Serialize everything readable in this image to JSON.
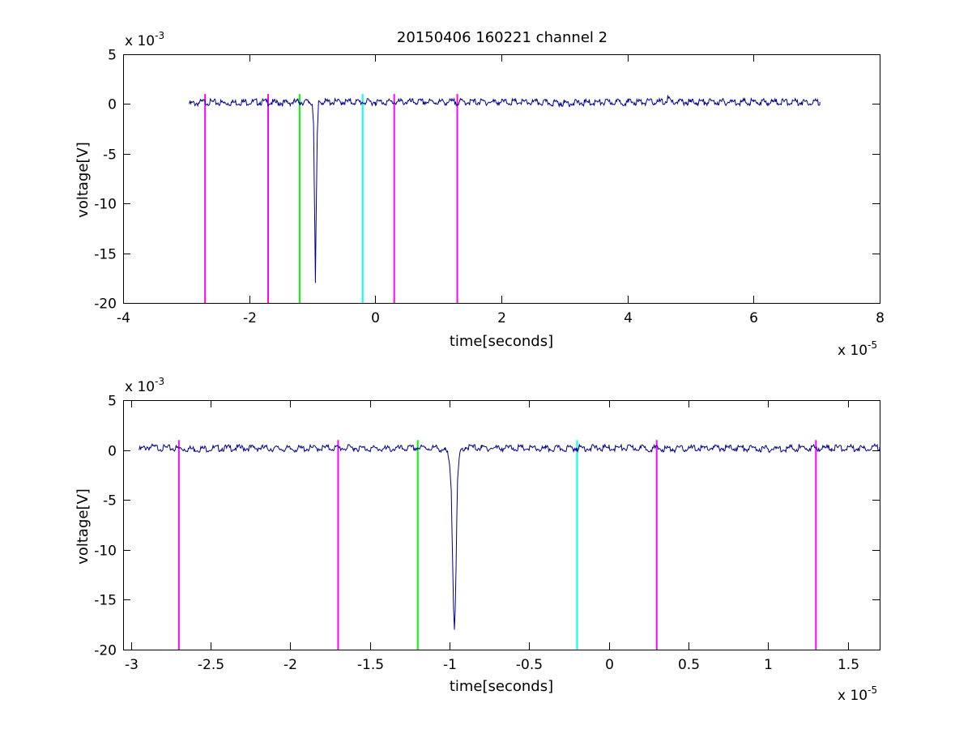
{
  "chart_data": [
    {
      "type": "line",
      "title": "20150406 160221 channel 2",
      "xlabel": "time[seconds]",
      "ylabel": "voltage[V]",
      "x_multiplier_label": "x 10",
      "x_multiplier_exp": "-5",
      "y_multiplier_label": "x 10",
      "y_multiplier_exp": "-3",
      "xlim": [
        -4,
        8
      ],
      "ylim": [
        -20,
        5
      ],
      "xticks": [
        -4,
        -2,
        0,
        2,
        4,
        6,
        8
      ],
      "xtick_labels": [
        "-4",
        "-2",
        "0",
        "2",
        "4",
        "6",
        "8"
      ],
      "yticks": [
        5,
        0,
        -5,
        -10,
        -15,
        -20
      ],
      "ytick_labels": [
        "5",
        "0",
        "-5",
        "-10",
        "-15",
        "-20"
      ],
      "grid": false,
      "series": [
        {
          "color": "#00008B",
          "x": [
            -2.95,
            -2.7,
            -2.4,
            -2.1,
            -1.8,
            -1.5,
            -1.2,
            -1.05,
            -1.0,
            -0.98,
            -0.97,
            -0.96,
            -0.95,
            -0.94,
            -0.92,
            -0.9,
            -0.8,
            -0.5,
            0,
            1,
            2,
            3,
            4,
            4.6,
            4.65,
            4.7,
            5,
            6,
            7.05
          ],
          "y": [
            0.0,
            0.2,
            0.1,
            0.2,
            0.2,
            0.1,
            0.2,
            0.2,
            0.0,
            -2.0,
            -7.0,
            -12.0,
            -18.0,
            -12.0,
            -3.0,
            0.3,
            0.2,
            0.2,
            0.2,
            0.2,
            0.2,
            0.1,
            0.2,
            0.2,
            0.6,
            0.2,
            0.2,
            0.2,
            0.2
          ]
        }
      ],
      "vertical_markers": [
        {
          "x": -2.7,
          "color": "#FF00FF"
        },
        {
          "x": -1.7,
          "color": "#FF00FF"
        },
        {
          "x": -1.2,
          "color": "#00FF00"
        },
        {
          "x": -0.2,
          "color": "#00FFFF"
        },
        {
          "x": 0.3,
          "color": "#FF00FF"
        },
        {
          "x": 1.3,
          "color": "#FF00FF"
        }
      ],
      "marker_top": 1.0,
      "marker_bottom": -20
    },
    {
      "type": "line",
      "title": "",
      "xlabel": "time[seconds]",
      "ylabel": "voltage[V]",
      "x_multiplier_label": "x 10",
      "x_multiplier_exp": "-5",
      "y_multiplier_label": "x 10",
      "y_multiplier_exp": "-3",
      "xlim": [
        -3.05,
        1.7
      ],
      "ylim": [
        -20,
        5
      ],
      "xticks": [
        -3,
        -2.5,
        -2,
        -1.5,
        -1,
        -0.5,
        0,
        0.5,
        1,
        1.5
      ],
      "xtick_labels": [
        "-3",
        "-2.5",
        "-2",
        "-1.5",
        "-1",
        "-0.5",
        "0",
        "0.5",
        "1",
        "1.5"
      ],
      "yticks": [
        5,
        0,
        -5,
        -10,
        -15,
        -20
      ],
      "ytick_labels": [
        "5",
        "0",
        "-5",
        "-10",
        "-15",
        "-20"
      ],
      "grid": false,
      "series": [
        {
          "color": "#00008B",
          "x": [
            -2.95,
            -2.9,
            -2.8,
            -2.6,
            -2.4,
            -2.2,
            -2.0,
            -1.8,
            -1.6,
            -1.4,
            -1.2,
            -1.08,
            -1.03,
            -1.01,
            -1.0,
            -0.99,
            -0.985,
            -0.98,
            -0.975,
            -0.97,
            -0.965,
            -0.96,
            -0.955,
            -0.95,
            -0.94,
            -0.93,
            -0.9,
            -0.8,
            -0.6,
            -0.4,
            -0.2,
            0.0,
            0.2,
            0.4,
            0.6,
            0.8,
            1.0,
            1.2,
            1.4,
            1.6,
            1.7
          ],
          "y": [
            0.0,
            0.3,
            0.2,
            0.1,
            0.2,
            0.2,
            0.1,
            0.2,
            0.2,
            0.1,
            0.2,
            0.2,
            0.0,
            -0.5,
            -1.5,
            -4.0,
            -8.0,
            -12.0,
            -16.0,
            -18.0,
            -16.0,
            -12.0,
            -7.0,
            -3.0,
            -0.8,
            0.0,
            0.3,
            0.2,
            0.2,
            0.1,
            0.2,
            0.2,
            0.2,
            0.1,
            0.2,
            0.2,
            0.1,
            0.2,
            0.2,
            0.2,
            0.3
          ]
        }
      ],
      "vertical_markers": [
        {
          "x": -2.7,
          "color": "#FF00FF"
        },
        {
          "x": -1.7,
          "color": "#FF00FF"
        },
        {
          "x": -1.2,
          "color": "#00FF00"
        },
        {
          "x": -0.2,
          "color": "#00FFFF"
        },
        {
          "x": 0.3,
          "color": "#FF00FF"
        },
        {
          "x": 1.3,
          "color": "#FF00FF"
        }
      ],
      "marker_top": 1.0,
      "marker_bottom": -20
    }
  ]
}
